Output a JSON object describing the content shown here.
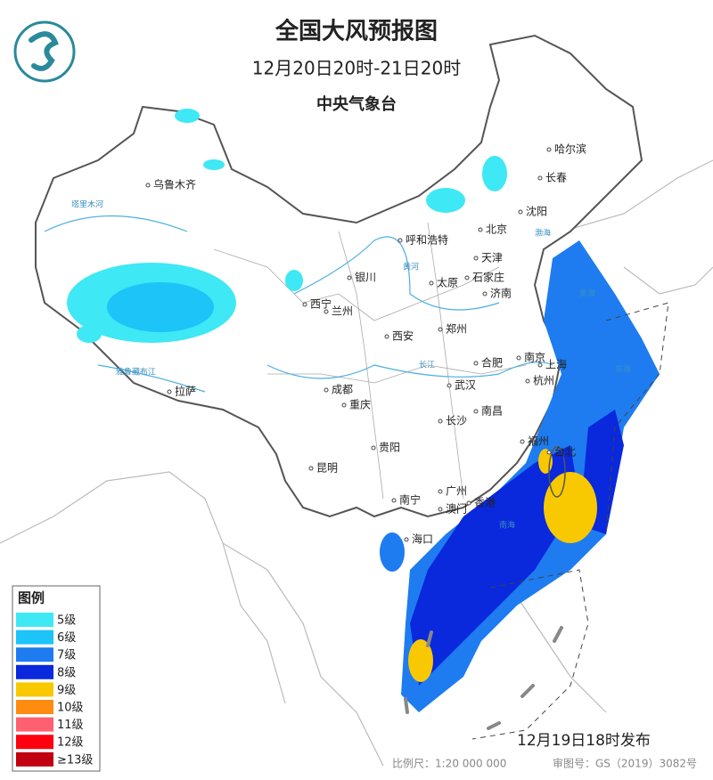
{
  "header": {
    "title": "全国大风预报图",
    "period": "12月20日20时-21日20时",
    "issuer": "中央气象台"
  },
  "cities": [
    "乌鲁木齐",
    "呼和浩特",
    "北京",
    "天津",
    "沈阳",
    "长春",
    "哈尔滨",
    "银川",
    "石家庄",
    "太原",
    "济南",
    "西宁",
    "兰州",
    "西安",
    "郑州",
    "合肥",
    "南京",
    "上海",
    "杭州",
    "武汉",
    "成都",
    "重庆",
    "长沙",
    "南昌",
    "拉萨",
    "贵阳",
    "昆明",
    "福州",
    "台北",
    "南宁",
    "广州",
    "澳门",
    "香港",
    "海口"
  ],
  "water_labels": [
    "塔里木河",
    "黄河",
    "长江",
    "雅鲁藏布江",
    "渤海",
    "黄海",
    "东海",
    "南海"
  ],
  "legend": {
    "title": "图例",
    "items": [
      {
        "label": "5级",
        "color": "#3ee8f4"
      },
      {
        "label": "6级",
        "color": "#1cc4f8"
      },
      {
        "label": "7级",
        "color": "#1e7cf0"
      },
      {
        "label": "8级",
        "color": "#0a28dc"
      },
      {
        "label": "9级",
        "color": "#f8c800"
      },
      {
        "label": "10级",
        "color": "#ff8c10"
      },
      {
        "label": "11级",
        "color": "#ff6070"
      },
      {
        "label": "12级",
        "color": "#ff0010"
      },
      {
        "label": "≥13级",
        "color": "#c00010"
      }
    ]
  },
  "footer": {
    "issued": "12月19日18时发布",
    "scale": "比例尺：1:20 000 000",
    "approval": "审图号：GS（2019）3082号"
  }
}
